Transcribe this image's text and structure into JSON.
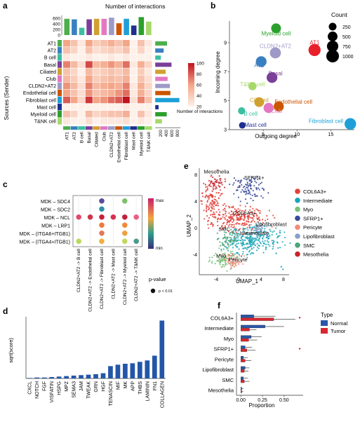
{
  "panels": {
    "a": {
      "letter": "a",
      "top_title": "Number of interactions",
      "ylabel": "Sources (Sender)",
      "colorbar_title": "Number of interactions",
      "colorbar_ticks": [
        "100",
        "80",
        "60",
        "40",
        "20"
      ],
      "top_axis_ticks": [
        "600",
        "400",
        "200",
        "0"
      ],
      "right_axis_ticks": [
        "200",
        "400",
        "600",
        "800"
      ],
      "rows": [
        "AT1",
        "AT2",
        "B cell",
        "Basal",
        "Ciliated",
        "Club",
        "CLDN2+AT2",
        "Endothelial cell",
        "Fibroblast cell",
        "Mast cell",
        "Myeloid cell",
        "T&NK cell"
      ],
      "cols": [
        "AT1",
        "AT2",
        "B cell",
        "Basal",
        "Ciliated",
        "Club",
        "CLDN2+AT2",
        "Endothelial cell",
        "Fibroblast cell",
        "Mast cell",
        "Myeloid cell",
        "T&NK cell"
      ],
      "cell_colors": [
        "#4daf4a",
        "#3a7fc1",
        "#3cbfa0",
        "#7b3f98",
        "#d0a030",
        "#e377c2",
        "#9e9ac8",
        "#cc5500",
        "#1f9fd8",
        "#1f2f8f",
        "#2ca02c",
        "#a6d96a"
      ]
    },
    "b": {
      "letter": "b",
      "xlabel": "Outgoing degree",
      "ylabel": "Incoming degree",
      "legend_title": "Count",
      "legend_values": [
        "250",
        "500",
        "750",
        "1000"
      ]
    },
    "c": {
      "letter": "c",
      "pvalue_title": "p-value",
      "pvalue_label": "p < 0.01",
      "colorbar_min": "min",
      "colorbar_max": "max",
      "rows": [
        "MDK – SDC4",
        "MDK – SDC2",
        "MDK – NCL",
        "MDK – LRP1",
        "MDK – (ITGA6+ITGB1)",
        "MDK – (ITGA4+ITGB1)"
      ],
      "cols": [
        "CLDN2+AT2 -> B cell",
        "CLDN2+AT2 -> Endothelial cell",
        "CLDN2+AT2 -> Fibroblast cell",
        "CLDN2+AT2 -> Mast cell",
        "CLDN2+AT2 -> Myeloid cell",
        "CLDN2+AT2 -> T&NK cell"
      ]
    },
    "d": {
      "letter": "d",
      "ylabel": "sqrt(score)"
    },
    "e": {
      "letter": "e",
      "xlabel": "UMAP_1",
      "ylabel": "UMAP_2",
      "legend": [
        {
          "label": "COL6A3+",
          "color": "#e0413a"
        },
        {
          "label": "Intermediate",
          "color": "#1aa6b7"
        },
        {
          "label": "Myo",
          "color": "#79c27a"
        },
        {
          "label": "SFRP1+",
          "color": "#3a4a99"
        },
        {
          "label": "Pericyte",
          "color": "#f08c7a"
        },
        {
          "label": "Lipofibroblast",
          "color": "#8aa0c8"
        },
        {
          "label": "SMC",
          "color": "#4aa57a"
        },
        {
          "label": "Mesothelia",
          "color": "#c5252d"
        }
      ],
      "cluster_labels": [
        "Mesothelia",
        "SFRP1+",
        "COL6A3+",
        "Lipofibroblast",
        "SMC",
        "Intermediate",
        "Myo",
        "Pericyte"
      ]
    },
    "f": {
      "letter": "f",
      "xlabel": "Proportion",
      "legend_title": "Type",
      "legend": [
        {
          "label": "Normal",
          "color": "#2a56a8"
        },
        {
          "label": "Tumor",
          "color": "#d7282f"
        }
      ]
    }
  },
  "chart_data": [
    {
      "panel": "a",
      "type": "heatmap",
      "rows": [
        "AT1",
        "AT2",
        "B cell",
        "Basal",
        "Ciliated",
        "Club",
        "CLDN2+AT2",
        "Endothelial cell",
        "Fibroblast cell",
        "Mast cell",
        "Myeloid cell",
        "T&NK cell"
      ],
      "cols": [
        "AT1",
        "AT2",
        "B cell",
        "Basal",
        "Ciliated",
        "Club",
        "CLDN2+AT2",
        "Endothelial cell",
        "Fibroblast cell",
        "Mast cell",
        "Myeloid cell",
        "T&NK cell"
      ],
      "values": [
        [
          60,
          45,
          25,
          60,
          40,
          45,
          55,
          45,
          60,
          20,
          45,
          25
        ],
        [
          45,
          35,
          20,
          45,
          30,
          35,
          40,
          35,
          45,
          15,
          35,
          20
        ],
        [
          25,
          20,
          10,
          25,
          15,
          20,
          25,
          20,
          25,
          10,
          20,
          15
        ],
        [
          70,
          50,
          30,
          85,
          50,
          55,
          65,
          55,
          75,
          25,
          55,
          35
        ],
        [
          45,
          35,
          20,
          50,
          35,
          40,
          45,
          40,
          50,
          20,
          40,
          25
        ],
        [
          50,
          40,
          25,
          60,
          40,
          45,
          50,
          45,
          55,
          20,
          45,
          30
        ],
        [
          65,
          50,
          30,
          70,
          50,
          55,
          60,
          55,
          70,
          25,
          55,
          35
        ],
        [
          60,
          45,
          30,
          65,
          45,
          50,
          55,
          65,
          75,
          25,
          55,
          35
        ],
        [
          80,
          60,
          35,
          90,
          60,
          65,
          75,
          80,
          100,
          30,
          70,
          45
        ],
        [
          20,
          15,
          10,
          20,
          15,
          15,
          20,
          20,
          25,
          10,
          20,
          10
        ],
        [
          45,
          35,
          20,
          50,
          35,
          40,
          45,
          45,
          55,
          20,
          45,
          25
        ],
        [
          25,
          20,
          15,
          30,
          20,
          25,
          25,
          25,
          30,
          10,
          25,
          20
        ]
      ],
      "col_totals": [
        580,
        560,
        260,
        560,
        580,
        580,
        620,
        420,
        580,
        340,
        640,
        480
      ],
      "row_totals": [
        420,
        300,
        200,
        580,
        370,
        440,
        520,
        540,
        860,
        120,
        410,
        240
      ],
      "colorbar_range": [
        20,
        100
      ]
    },
    {
      "panel": "b",
      "type": "scatter",
      "xlabel": "Outgoing degree",
      "ylabel": "Incoming degree",
      "xlim": [
        0,
        18.5
      ],
      "ylim": [
        3,
        10.5
      ],
      "xticks": [
        5,
        10,
        15
      ],
      "yticks": [
        3,
        5,
        7,
        9
      ],
      "points": [
        {
          "label": "AT1",
          "x": 12.6,
          "y": 8.5,
          "count": 900,
          "color": "#e8202a"
        },
        {
          "label": "Myeloid cell",
          "x": 6.9,
          "y": 10.0,
          "count": 500,
          "color": "#2ca02c"
        },
        {
          "label": "CLDN2+AT2",
          "x": 6.8,
          "y": 8.3,
          "count": 700,
          "color": "#9e9ac8"
        },
        {
          "label": "AT2",
          "x": 4.7,
          "y": 7.7,
          "count": 650,
          "color": "#3a7fc1"
        },
        {
          "label": "Basal",
          "x": 6.3,
          "y": 6.6,
          "count": 650,
          "color": "#7b3f98"
        },
        {
          "label": "T&NK cell",
          "x": 3.4,
          "y": 6.0,
          "count": 300,
          "color": "#a6d96a"
        },
        {
          "label": "Ciliated",
          "x": 4.4,
          "y": 4.9,
          "count": 500,
          "color": "#d0a030"
        },
        {
          "label": "Endothelial cell",
          "x": 7.3,
          "y": 4.6,
          "count": 550,
          "color": "#cc5500"
        },
        {
          "label": "Club",
          "x": 5.8,
          "y": 4.5,
          "count": 550,
          "color": "#e377c2"
        },
        {
          "label": "B cell",
          "x": 1.8,
          "y": 4.3,
          "count": 200,
          "color": "#3cbfa0"
        },
        {
          "label": "Mast cell",
          "x": 1.9,
          "y": 3.3,
          "count": 150,
          "color": "#1f2f8f"
        },
        {
          "label": "Fibroblast cell",
          "x": 17.9,
          "y": 3.4,
          "count": 800,
          "color": "#1f9fd8"
        }
      ]
    },
    {
      "panel": "c",
      "type": "scatter",
      "points": [
        {
          "row": 0,
          "col": 2,
          "color": "#5b4a9a"
        },
        {
          "row": 0,
          "col": 4,
          "color": "#7cc06a"
        },
        {
          "row": 1,
          "col": 2,
          "color": "#2e8fa8"
        },
        {
          "row": 2,
          "col": 0,
          "color": "#e04a6a"
        },
        {
          "row": 2,
          "col": 1,
          "color": "#d0344a"
        },
        {
          "row": 2,
          "col": 2,
          "color": "#c81e3a"
        },
        {
          "row": 2,
          "col": 3,
          "color": "#d83050"
        },
        {
          "row": 2,
          "col": 4,
          "color": "#c0203a"
        },
        {
          "row": 2,
          "col": 5,
          "color": "#e86080"
        },
        {
          "row": 3,
          "col": 2,
          "color": "#f07a3a"
        },
        {
          "row": 3,
          "col": 4,
          "color": "#f08a3a"
        },
        {
          "row": 4,
          "col": 2,
          "color": "#e07a5a"
        },
        {
          "row": 4,
          "col": 4,
          "color": "#f0a040"
        },
        {
          "row": 5,
          "col": 0,
          "color": "#b8d860"
        },
        {
          "row": 5,
          "col": 2,
          "color": "#f0b040"
        },
        {
          "row": 5,
          "col": 4,
          "color": "#c0d860"
        },
        {
          "row": 5,
          "col": 5,
          "color": "#4a9a8a"
        }
      ]
    },
    {
      "panel": "d",
      "type": "bar",
      "categories": [
        "CXCL",
        "NOTCH",
        "FGF",
        "VISFATIN",
        "HSPG",
        "MPZ",
        "SEMA3",
        "JAM",
        "TWEAK",
        "GRN",
        "HGF",
        "TENASCIN",
        "MIF",
        "MK",
        "APP",
        "THBS",
        "LAMININ",
        "FN1",
        "COLLAGEN"
      ],
      "values": [
        0.01,
        0.02,
        0.02,
        0.03,
        0.04,
        0.05,
        0.06,
        0.07,
        0.08,
        0.09,
        0.11,
        0.26,
        0.29,
        0.31,
        0.32,
        0.35,
        0.38,
        0.48,
        1.22
      ],
      "ylim": [
        0,
        1.3
      ],
      "color": "#2356a8"
    },
    {
      "panel": "e",
      "type": "scatter",
      "xlim": [
        -7,
        9
      ],
      "ylim": [
        -7,
        9
      ],
      "xticks": [
        -4,
        0,
        4,
        8
      ],
      "yticks": [
        -4,
        0,
        4,
        8
      ]
    },
    {
      "panel": "f",
      "type": "bar",
      "orientation": "horizontal",
      "categories": [
        "COL6A3+",
        "Intermediate",
        "Myo",
        "SFRP1+",
        "Pericyte",
        "Lipofibroblast",
        "SMC",
        "Mesothelia"
      ],
      "series": [
        {
          "name": "Normal",
          "values": [
            0.15,
            0.28,
            0.12,
            0.05,
            0.03,
            0.05,
            0.03,
            0.01
          ],
          "errors": [
            0.25,
            0.22,
            0.12,
            0.08,
            0.05,
            0.05,
            0.05,
            0.02
          ]
        },
        {
          "name": "Tumor",
          "values": [
            0.38,
            0.1,
            0.09,
            0.07,
            0.05,
            0.04,
            0.04,
            0.01
          ],
          "errors": [
            0.25,
            0.08,
            0.1,
            0.1,
            0.07,
            0.05,
            0.06,
            0.02
          ]
        }
      ],
      "xlim": [
        -0.05,
        0.72
      ],
      "xticks": [
        0,
        0.25,
        0.5
      ],
      "outliers": [
        {
          "category": "COL6A3+",
          "x": 0.68
        },
        {
          "category": "SFRP1+",
          "x": 0.68
        }
      ]
    }
  ]
}
